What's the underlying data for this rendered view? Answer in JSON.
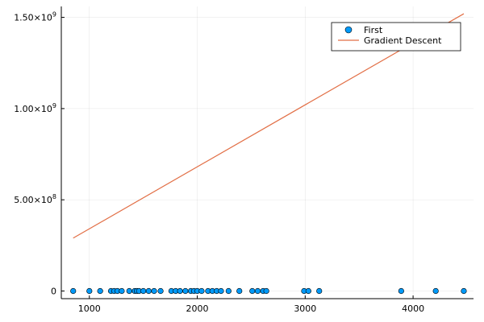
{
  "chart_data": {
    "type": "scatter",
    "title": "",
    "xlabel": "",
    "ylabel": "",
    "xlim": [
      740,
      4560
    ],
    "ylim": [
      -42000000.0,
      1560000000.0
    ],
    "grid": true,
    "legend_position": "top-right",
    "x_ticks": [
      {
        "value": 1000,
        "label": "1000"
      },
      {
        "value": 2000,
        "label": "2000"
      },
      {
        "value": 3000,
        "label": "3000"
      },
      {
        "value": 4000,
        "label": "4000"
      }
    ],
    "y_ticks": [
      {
        "value": 0,
        "label": "0",
        "exp": ""
      },
      {
        "value": 500000000,
        "label": "5.00×10",
        "exp": "8"
      },
      {
        "value": 1000000000,
        "label": "1.00×10",
        "exp": "9"
      },
      {
        "value": 1500000000,
        "label": "1.50×10",
        "exp": "9"
      }
    ],
    "series": [
      {
        "name": "First",
        "kind": "scatter",
        "color": "#009AF9",
        "x": [
          850,
          1000,
          1100,
          1200,
          1230,
          1260,
          1300,
          1370,
          1420,
          1440,
          1460,
          1500,
          1550,
          1600,
          1660,
          1760,
          1800,
          1840,
          1890,
          1940,
          1970,
          2000,
          2040,
          2100,
          2140,
          2180,
          2220,
          2290,
          2390,
          2510,
          2560,
          2610,
          2640,
          2990,
          3030,
          3130,
          3890,
          4210,
          4470
        ],
        "y": [
          0,
          0,
          0,
          0,
          0,
          0,
          0,
          0,
          0,
          0,
          0,
          0,
          0,
          0,
          0,
          0,
          0,
          0,
          0,
          0,
          0,
          0,
          0,
          0,
          0,
          0,
          0,
          0,
          0,
          0,
          0,
          0,
          0,
          0,
          0,
          0,
          0,
          0,
          0
        ]
      },
      {
        "name": "Gradient Descent",
        "kind": "line",
        "color": "#E26F46",
        "x": [
          850,
          4470
        ],
        "y": [
          290000000,
          1520000000
        ]
      }
    ]
  }
}
